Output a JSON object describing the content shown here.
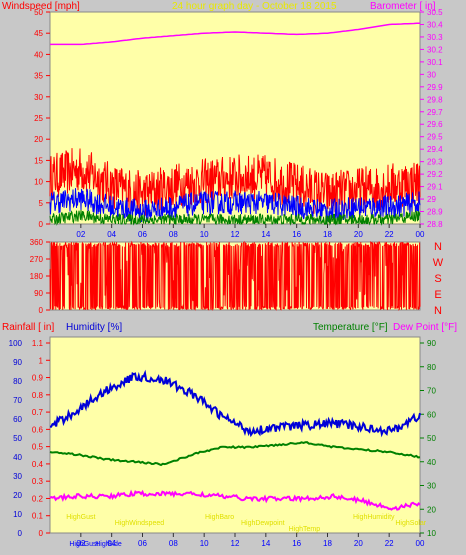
{
  "header": {
    "left_title": "Windspeed [mph]",
    "center_title": "24 hour graph day - October 18 2015",
    "right_title": "Barometer [ in]"
  },
  "wind_panel": {
    "ylabel": "Windspeed [mph]",
    "y_ticks": [
      "0",
      "5",
      "10",
      "15",
      "20",
      "25",
      "30",
      "35",
      "40",
      "45",
      "50"
    ],
    "baro_label": "Barometer [ in]",
    "baro_ticks": [
      "28.8",
      "28.9",
      "29",
      "29.1",
      "29.2",
      "29.3",
      "29.4",
      "29.5",
      "29.6",
      "29.7",
      "29.8",
      "29.9",
      "30",
      "30.1",
      "30.2",
      "30.3",
      "30.4",
      "30.5"
    ],
    "x_ticks": [
      "02",
      "04",
      "06",
      "08",
      "10",
      "12",
      "14",
      "16",
      "18",
      "20",
      "22",
      "00"
    ]
  },
  "dir_panel": {
    "y_ticks": [
      "0",
      "90",
      "180",
      "270",
      "360"
    ],
    "y_tick_values": [
      0,
      90,
      180,
      270,
      360
    ],
    "compass": [
      "N",
      "W",
      "S",
      "E",
      "N"
    ]
  },
  "bottom_panel": {
    "rain_label": "Rainfall [ in]",
    "humidity_label": "Humidity [%]",
    "temp_label": "Temperature [°F]",
    "dew_label": "Dew Point [°F]",
    "humidity_ticks": [
      "0",
      "10",
      "20",
      "30",
      "40",
      "50",
      "60",
      "70",
      "80",
      "90",
      "100"
    ],
    "rain_ticks": [
      "0",
      "0.1",
      "0.2",
      "0.3",
      "0.4",
      "0.5",
      "0.6",
      "0.7",
      "0.8",
      "0.9",
      "1",
      "1.1"
    ],
    "temp_ticks": [
      "10",
      "20",
      "30",
      "40",
      "50",
      "60",
      "70",
      "80",
      "90"
    ],
    "x_ticks": [
      "02",
      "04",
      "06",
      "08",
      "10",
      "12",
      "14",
      "16",
      "18",
      "20",
      "22",
      "00"
    ],
    "annotations": [
      {
        "text": "HighGust",
        "hour": 2.0,
        "row": 0
      },
      {
        "text": "HighWindspeed",
        "hour": 5.8,
        "row": 1
      },
      {
        "text": "HighBaro",
        "hour": 11.0,
        "row": 0
      },
      {
        "text": "HighDewpoint",
        "hour": 13.8,
        "row": 1
      },
      {
        "text": "HighTemp",
        "hour": 16.5,
        "row": 2
      },
      {
        "text": "HighHumidity",
        "hour": 21.0,
        "row": 0
      },
      {
        "text": "HighSolar",
        "hour": 23.4,
        "row": 1
      }
    ],
    "bottom_labels": [
      {
        "text": "HighGust",
        "hour": 2.2
      },
      {
        "text": "High",
        "hour": 3.4
      },
      {
        "text": "Side",
        "hour": 4.2
      }
    ]
  },
  "colors": {
    "plot_bg": "#ffffa8",
    "frame_bg": "#c8c8c8",
    "wind_gust": "#ff0000",
    "wind_avg": "#0000ff",
    "wind_low": "#008000",
    "barometer": "#ff00ff",
    "direction": "#ff0000",
    "humidity": "#0000d8",
    "temperature": "#008000",
    "dewpoint": "#ff00ff",
    "annotation": "#e0e000"
  },
  "chart_data": [
    {
      "type": "line",
      "title": "24 hour graph day - October 18 2015",
      "ylabel": "Windspeed [mph]",
      "y2label": "Barometer [ in]",
      "ylim": [
        0,
        50
      ],
      "y2lim": [
        28.8,
        30.5
      ],
      "x_hours": [
        0,
        2,
        4,
        6,
        8,
        10,
        12,
        14,
        16,
        18,
        20,
        22,
        24
      ],
      "series": [
        {
          "axis": "y2",
          "values": [
            30.24,
            30.24,
            30.26,
            30.29,
            30.31,
            30.33,
            30.34,
            30.33,
            30.32,
            30.33,
            30.36,
            30.4,
            30.41
          ]
        },
        {
          "axis": "y",
          "values": [
            11,
            13,
            9,
            7,
            9,
            10,
            11,
            11,
            9,
            7,
            8,
            9,
            10
          ]
        },
        {
          "axis": "y",
          "values": [
            5,
            6,
            4,
            3,
            4,
            5,
            5,
            5,
            4,
            3,
            4,
            4,
            5
          ]
        },
        {
          "axis": "y",
          "values": [
            1,
            2,
            1,
            1,
            1,
            1,
            1,
            1,
            1,
            1,
            1,
            1,
            2
          ]
        }
      ],
      "grid": false
    },
    {
      "type": "line",
      "ylim": [
        0,
        360
      ],
      "x_hours": [
        0,
        24
      ],
      "series": [
        {
          "values": [
            0,
            360
          ]
        }
      ]
    },
    {
      "type": "line",
      "ylabel": "Humidity [%]",
      "y2label": "Temperature [°F]",
      "ylim": [
        0,
        100
      ],
      "y2lim": [
        10,
        90
      ],
      "x_hours": [
        0,
        2,
        4,
        6,
        8,
        10,
        12,
        13,
        14,
        16,
        18,
        20,
        22,
        24
      ],
      "series": [
        {
          "axis": "y",
          "values": [
            54,
            63,
            73,
            80,
            78,
            71,
            60,
            52,
            54,
            55,
            56,
            54,
            52,
            60
          ]
        },
        {
          "axis": "y2",
          "values": [
            43,
            42,
            40,
            39,
            38,
            42,
            45,
            45,
            46,
            47,
            45,
            44,
            43,
            41
          ]
        },
        {
          "axis": "y2",
          "values": [
            24,
            25,
            25,
            26,
            26,
            26,
            25,
            24,
            24,
            24,
            25,
            23,
            20,
            22
          ]
        }
      ],
      "grid": false
    }
  ]
}
